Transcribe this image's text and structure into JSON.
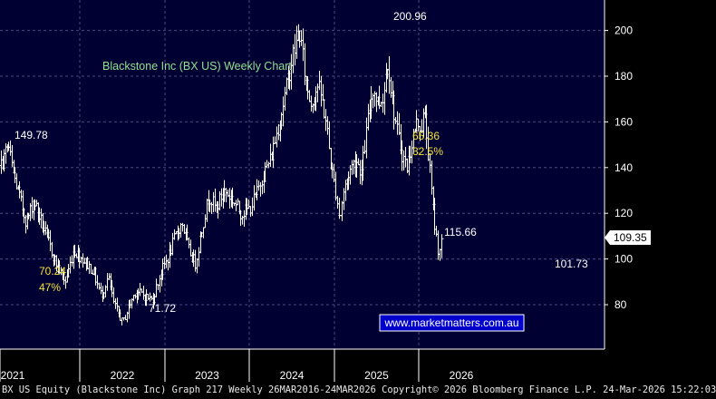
{
  "footer": {
    "text": "BX US Equity (Blackstone Inc) Graph 217 Weekly 26MAR2016-24MAR2026 Copyright© 2026 Bloomberg Finance L.P. 24-Mar-2026 15:22:03"
  },
  "colors": {
    "background": "#000033",
    "grid": "#4a4a80",
    "bars": "#ffffff",
    "title": "#8fe08f",
    "annotation_yellow": "#f5e033",
    "price_tag_bg": "#ffffff",
    "link_bg": "#0000cc"
  },
  "chart_data": {
    "type": "ohlc",
    "title": "Blackstone Inc (BX US) Weekly Chart",
    "xlabel": "",
    "ylabel": "",
    "x_ticks": [
      "2021",
      "2022",
      "2023",
      "2024",
      "2025",
      "2026"
    ],
    "y_ticks": [
      80,
      100,
      120,
      140,
      160,
      180,
      200
    ],
    "ylim": [
      60,
      212
    ],
    "grid": true,
    "last_price": "109.35",
    "watermark": "www.marketmatters.com.au",
    "annotations": [
      {
        "text": "200.96",
        "x": "2024-09",
        "y": 200.96,
        "color": "white"
      },
      {
        "text": "149.78",
        "x": "2021-11",
        "y": 149.78,
        "color": "white"
      },
      {
        "text": "71.72",
        "x": "2022-10",
        "y": 71.72,
        "color": "white"
      },
      {
        "text": "115.66",
        "x": "2025-04",
        "y": 115.66,
        "color": "white"
      },
      {
        "text": "101.73",
        "x": "2026-03",
        "y": 101.73,
        "color": "white"
      },
      {
        "text": "70.24",
        "x": "2022-01",
        "y": 100,
        "color": "yellow"
      },
      {
        "text": "47%",
        "x": "2022-01",
        "y": 100,
        "color": "yellow"
      },
      {
        "text": "65.36",
        "x": "2024-11",
        "y": 160,
        "color": "yellow"
      },
      {
        "text": "32.5%",
        "x": "2024-11",
        "y": 160,
        "color": "yellow"
      }
    ],
    "anchor_points": [
      [
        2020.8,
        120
      ],
      [
        2020.9,
        132
      ],
      [
        2021.0,
        140
      ],
      [
        2021.06,
        146
      ],
      [
        2021.1,
        149.78
      ],
      [
        2021.16,
        138
      ],
      [
        2021.25,
        126
      ],
      [
        2021.33,
        116
      ],
      [
        2021.42,
        126
      ],
      [
        2021.5,
        118
      ],
      [
        2021.6,
        108
      ],
      [
        2021.7,
        98
      ],
      [
        2021.82,
        90
      ],
      [
        2021.92,
        104
      ],
      [
        2022.03,
        100
      ],
      [
        2022.15,
        95
      ],
      [
        2022.25,
        84
      ],
      [
        2022.33,
        92
      ],
      [
        2022.4,
        80
      ],
      [
        2022.47,
        75
      ],
      [
        2022.5,
        71.72
      ],
      [
        2022.56,
        78
      ],
      [
        2022.65,
        86
      ],
      [
        2022.75,
        84
      ],
      [
        2022.85,
        82
      ],
      [
        2022.95,
        94
      ],
      [
        2023.05,
        102
      ],
      [
        2023.12,
        110
      ],
      [
        2023.2,
        116
      ],
      [
        2023.28,
        104
      ],
      [
        2023.36,
        98
      ],
      [
        2023.45,
        116
      ],
      [
        2023.52,
        128
      ],
      [
        2023.6,
        122
      ],
      [
        2023.7,
        130
      ],
      [
        2023.8,
        126
      ],
      [
        2023.9,
        120
      ],
      [
        2024.0,
        122
      ],
      [
        2024.08,
        128
      ],
      [
        2024.15,
        136
      ],
      [
        2024.25,
        144
      ],
      [
        2024.35,
        160
      ],
      [
        2024.42,
        172
      ],
      [
        2024.5,
        188
      ],
      [
        2024.55,
        194
      ],
      [
        2024.58,
        200.96
      ],
      [
        2024.62,
        190
      ],
      [
        2024.66,
        178
      ],
      [
        2024.72,
        168
      ],
      [
        2024.8,
        176
      ],
      [
        2024.85,
        170
      ],
      [
        2024.9,
        160
      ],
      [
        2024.96,
        140
      ],
      [
        2025.02,
        128
      ],
      [
        2025.06,
        117
      ],
      [
        2025.1,
        128
      ],
      [
        2025.17,
        138
      ],
      [
        2025.25,
        144
      ],
      [
        2025.32,
        138
      ],
      [
        2025.4,
        162
      ],
      [
        2025.45,
        175
      ],
      [
        2025.52,
        168
      ],
      [
        2025.58,
        172
      ],
      [
        2025.63,
        188
      ],
      [
        2025.68,
        170
      ],
      [
        2025.74,
        156
      ],
      [
        2025.8,
        146
      ],
      [
        2025.86,
        140
      ],
      [
        2025.92,
        152
      ],
      [
        2025.98,
        160
      ],
      [
        2026.03,
        158
      ],
      [
        2026.06,
        164
      ],
      [
        2026.1,
        150
      ],
      [
        2026.14,
        132
      ],
      [
        2026.18,
        116
      ],
      [
        2026.21,
        108
      ],
      [
        2026.23,
        102.5
      ],
      [
        2026.25,
        106
      ],
      [
        2026.28,
        110
      ]
    ]
  }
}
